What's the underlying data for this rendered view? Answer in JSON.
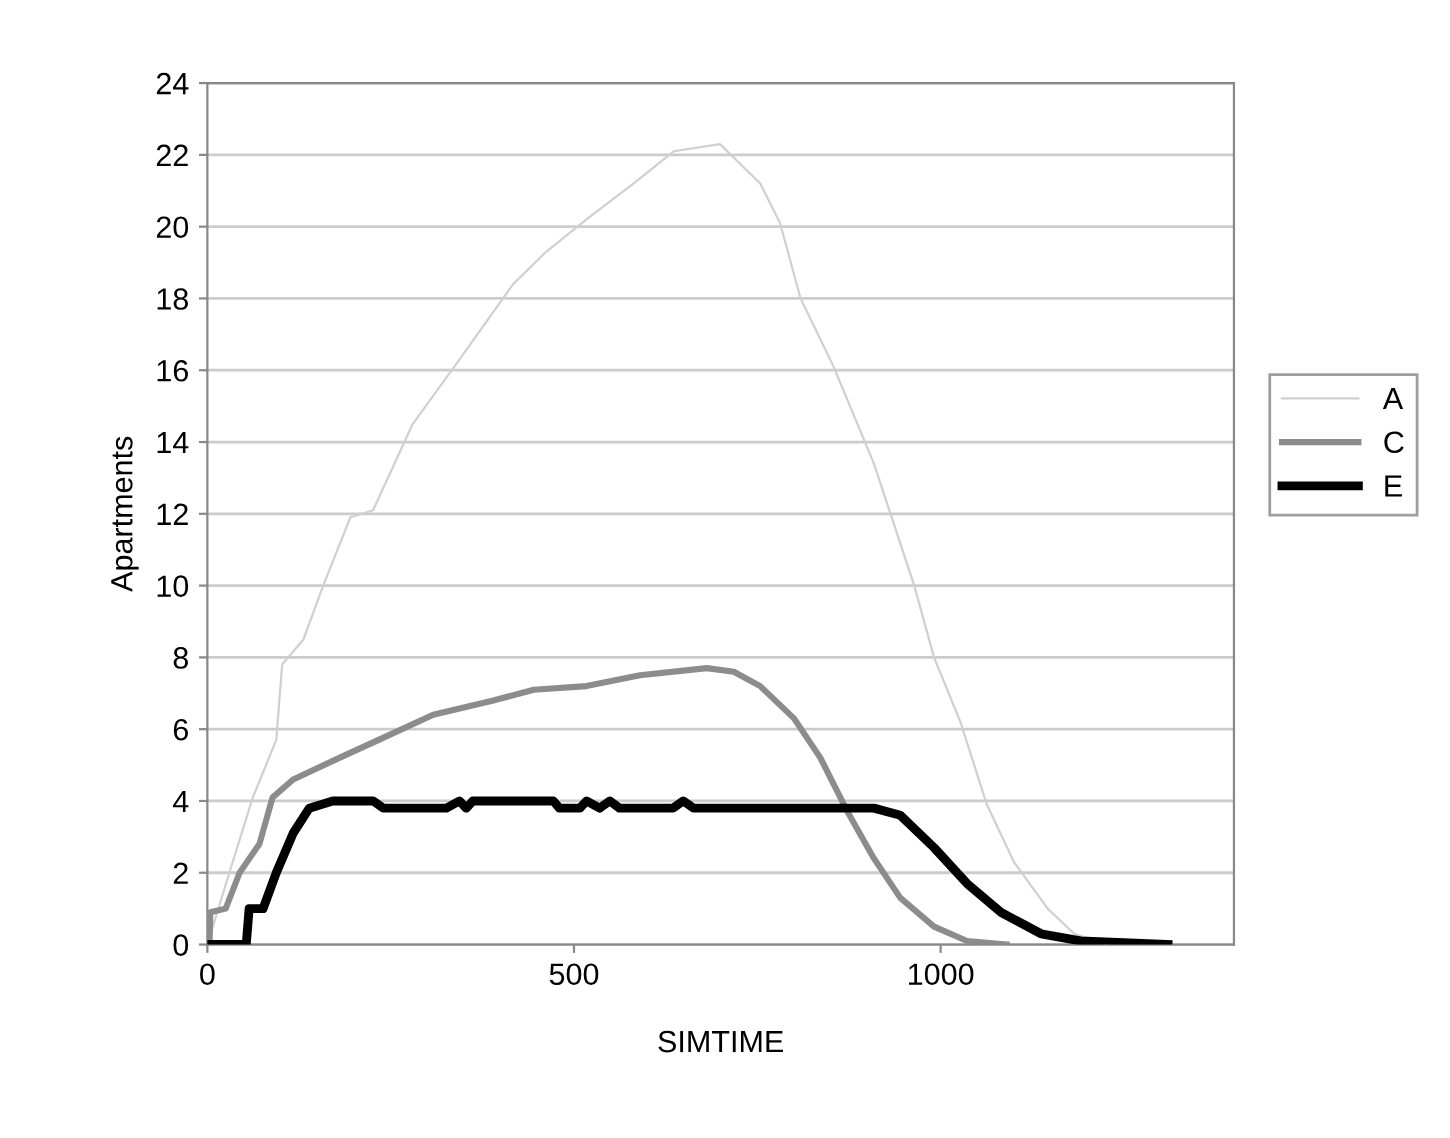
{
  "chart_data": {
    "type": "line",
    "xlabel": "SIMTIME",
    "ylabel": "Apartments",
    "xlim": [
      0,
      1400
    ],
    "xticks": [
      0,
      500,
      1000
    ],
    "ylim": [
      0,
      24
    ],
    "yticks": [
      0,
      2,
      4,
      6,
      8,
      10,
      12,
      14,
      16,
      18,
      20,
      22,
      24
    ],
    "grid": "y",
    "legend": "right",
    "marker": "none",
    "line_style": "solid",
    "series": [
      {
        "name": "A",
        "color": "#d0d0d0",
        "x": [
          0,
          30,
          62,
          94,
          102,
          131,
          158,
          195,
          226,
          280,
          344,
          417,
          462,
          517,
          581,
          636,
          699,
          754,
          781,
          809,
          854,
          909,
          964,
          991,
          1027,
          1063,
          1100,
          1146,
          1182,
          1227
        ],
        "values": [
          0,
          2,
          4.1,
          5.7,
          7.8,
          8.5,
          10,
          11.9,
          12.1,
          14.5,
          16.3,
          18.4,
          19.3,
          20.2,
          21.2,
          22.1,
          22.3,
          21.2,
          20.1,
          18,
          16.1,
          13.4,
          10,
          8,
          6.2,
          3.9,
          2.3,
          1,
          0.3,
          0
        ]
      },
      {
        "name": "C",
        "color": "#8c8c8c",
        "x": [
          3,
          4,
          25,
          44,
          71,
          89,
          117,
          180,
          244,
          308,
          390,
          445,
          517,
          590,
          681,
          718,
          754,
          800,
          836,
          873,
          909,
          945,
          991,
          1036,
          1090
        ],
        "values": [
          0,
          0.9,
          1,
          2,
          2.8,
          4.1,
          4.6,
          5.2,
          5.8,
          6.4,
          6.8,
          7.1,
          7.2,
          7.5,
          7.7,
          7.6,
          7.2,
          6.3,
          5.2,
          3.7,
          2.4,
          1.3,
          0.5,
          0.1,
          0
        ]
      },
      {
        "name": "E",
        "color": "#000000",
        "x": [
          3,
          53,
          57,
          76,
          94,
          117,
          139,
          171,
          226,
          240,
          326,
          344,
          353,
          362,
          472,
          480,
          508,
          517,
          535,
          549,
          562,
          635,
          649,
          663,
          909,
          945,
          991,
          1036,
          1082,
          1137,
          1191,
          1310
        ],
        "values": [
          0,
          0,
          1,
          1,
          2,
          3.1,
          3.8,
          4,
          4,
          3.8,
          3.8,
          4,
          3.8,
          4,
          4,
          3.8,
          3.8,
          4,
          3.8,
          4,
          3.8,
          3.8,
          4,
          3.8,
          3.8,
          3.6,
          2.7,
          1.7,
          0.9,
          0.3,
          0.1,
          0
        ]
      }
    ]
  }
}
